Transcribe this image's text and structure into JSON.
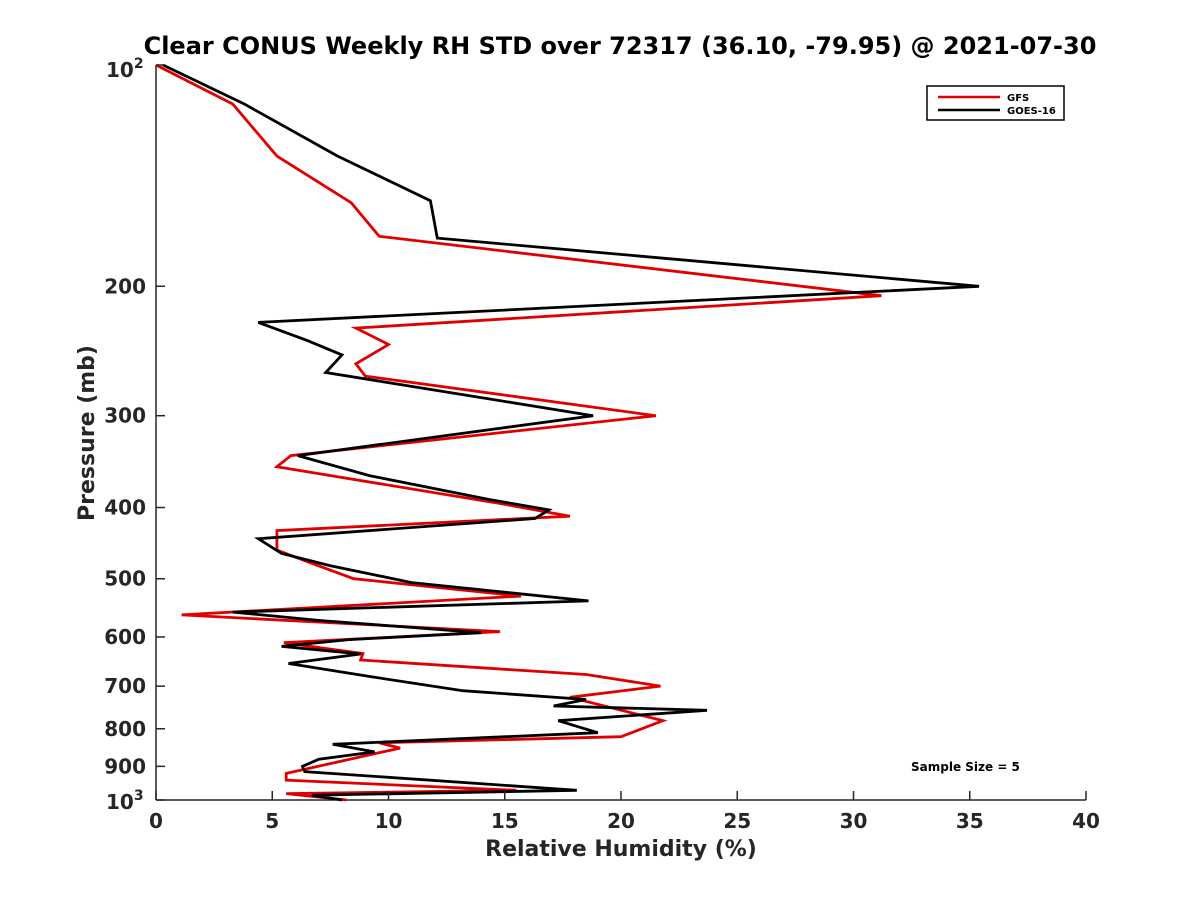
{
  "chart_data": {
    "type": "line",
    "title": "Clear CONUS Weekly RH STD over 72317 (36.10, -79.95) @ 2021-07-30",
    "xlabel": "Relative Humidity (%)",
    "ylabel": "Pressure (mb)",
    "xlim": [
      0,
      40
    ],
    "ylim": [
      100,
      1000
    ],
    "y_scale": "log",
    "y_reversed": true,
    "grid": false,
    "legend_position": "top-right",
    "x_ticks": [
      "0",
      "5",
      "10",
      "15",
      "20",
      "25",
      "30",
      "35",
      "40"
    ],
    "y_ticks": [
      {
        "value": 200,
        "label": "200"
      },
      {
        "value": 300,
        "label": "300"
      },
      {
        "value": 400,
        "label": "400"
      },
      {
        "value": 500,
        "label": "500"
      },
      {
        "value": 600,
        "label": "600"
      },
      {
        "value": 700,
        "label": "700"
      },
      {
        "value": 800,
        "label": "800"
      },
      {
        "value": 900,
        "label": "900"
      }
    ],
    "y_tick_100": {
      "base": "10",
      "exp": "2"
    },
    "y_tick_1000": {
      "base": "10",
      "exp": "3"
    },
    "annotation": "Sample Size = 5",
    "series": [
      {
        "name": "GFS",
        "color": "#e00000",
        "x": [
          0.0,
          3.3,
          5.2,
          8.4,
          9.6,
          31.2,
          8.6,
          10.0,
          8.6,
          9.0,
          21.5,
          5.8,
          5.2,
          14.8,
          17.8,
          5.2,
          5.2,
          6.6,
          8.5,
          15.7,
          1.1,
          14.8,
          5.5,
          8.9,
          8.8,
          18.5,
          21.7,
          17.8,
          21.8,
          20.0,
          9.6,
          10.5,
          5.6,
          5.6,
          15.5,
          5.6,
          8.2
        ],
        "y": [
          100,
          113,
          133,
          154,
          171,
          206,
          228,
          240,
          255,
          265,
          300,
          340,
          352,
          395,
          411,
          430,
          457,
          475,
          500,
          528,
          560,
          590,
          611,
          632,
          645,
          675,
          700,
          725,
          780,
          820,
          836,
          850,
          920,
          940,
          970,
          980,
          1000
        ]
      },
      {
        "name": "GOES-16",
        "color": "#000000",
        "x": [
          0.3,
          3.8,
          7.8,
          11.8,
          12.1,
          35.4,
          4.4,
          6.5,
          8.0,
          7.3,
          18.8,
          6.1,
          9.2,
          14.3,
          16.9,
          16.3,
          4.4,
          5.4,
          7.5,
          11.0,
          18.6,
          3.3,
          7.1,
          14.0,
          8.3,
          5.4,
          8.8,
          5.7,
          9.3,
          13.2,
          18.5,
          17.1,
          23.7,
          17.3,
          19.0,
          7.6,
          9.4,
          7.0,
          6.3,
          6.4,
          18.1,
          6.7,
          8.0
        ],
        "y": [
          100,
          113,
          133,
          153,
          172,
          200,
          224,
          237,
          248,
          262,
          300,
          340,
          362,
          390,
          403,
          414,
          441,
          462,
          480,
          506,
          536,
          555,
          570,
          592,
          605,
          618,
          633,
          652,
          680,
          710,
          730,
          745,
          755,
          780,
          810,
          840,
          860,
          880,
          900,
          915,
          970,
          985,
          1000
        ]
      }
    ]
  }
}
